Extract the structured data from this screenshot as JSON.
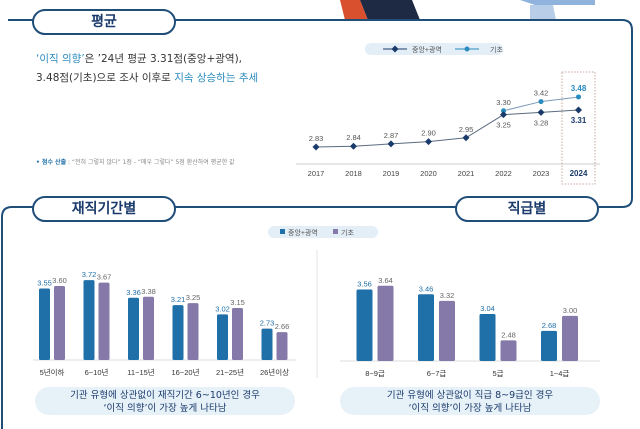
{
  "sections": {
    "average": "평균",
    "tenure": "재직기간별",
    "grade": "직급별"
  },
  "headline": {
    "part1": "‘이직 의향’",
    "part2": "은 ’24년 평균 3.31점(중앙+광역),",
    "part3": "3.48점(기초)으로 조사 이후로 ",
    "part4": "지속 상승하는 추세"
  },
  "note": {
    "label": "• 점수 산출",
    "text": " : “전혀 그렇지 않다” 1점 - “매우 그렇다” 5점 환산하여 평균한 값"
  },
  "callouts": {
    "tenure": [
      "기관 유형에 상관없이 재직기간 6~10년인 경우",
      "‘이직 의향’이 가장 높게 나타남"
    ],
    "grade": [
      "기관 유형에 상관없이 직급 8~9급인 경우",
      "‘이직 의향’이 가장 높게 나타남"
    ]
  },
  "colors": {
    "central": "#1f6fa8",
    "basic": "#8479a8",
    "line_central": "#1a3a6b",
    "line_basic": "#2a8bbf",
    "frame": "#1f4e79"
  },
  "chart_data": [
    {
      "type": "line",
      "categories": [
        "2017",
        "2018",
        "2019",
        "2020",
        "2021",
        "2022",
        "2023",
        "2024"
      ],
      "highlight": "2024",
      "series": [
        {
          "name": "중앙+광역",
          "values": [
            2.83,
            2.84,
            2.87,
            2.9,
            2.95,
            3.25,
            3.28,
            3.31
          ]
        },
        {
          "name": "기초",
          "values": [
            null,
            null,
            null,
            null,
            null,
            3.3,
            3.42,
            3.48
          ]
        }
      ],
      "legend": "top"
    },
    {
      "type": "bar",
      "categories": [
        "5년이하",
        "6~10년",
        "11~15년",
        "16~20년",
        "21~25년",
        "26년이상"
      ],
      "series": [
        {
          "name": "중앙+광역",
          "values": [
            3.55,
            3.72,
            3.36,
            3.21,
            3.02,
            2.73
          ]
        },
        {
          "name": "기초",
          "values": [
            3.6,
            3.67,
            3.38,
            3.25,
            3.15,
            2.66
          ]
        }
      ],
      "legend": "top"
    },
    {
      "type": "bar",
      "categories": [
        "8~9급",
        "6~7급",
        "5급",
        "1~4급"
      ],
      "series": [
        {
          "name": "중앙+광역",
          "values": [
            3.56,
            3.46,
            3.04,
            2.68
          ]
        },
        {
          "name": "기초",
          "values": [
            3.64,
            3.32,
            2.48,
            3.0
          ]
        }
      ],
      "legend": "top"
    }
  ]
}
